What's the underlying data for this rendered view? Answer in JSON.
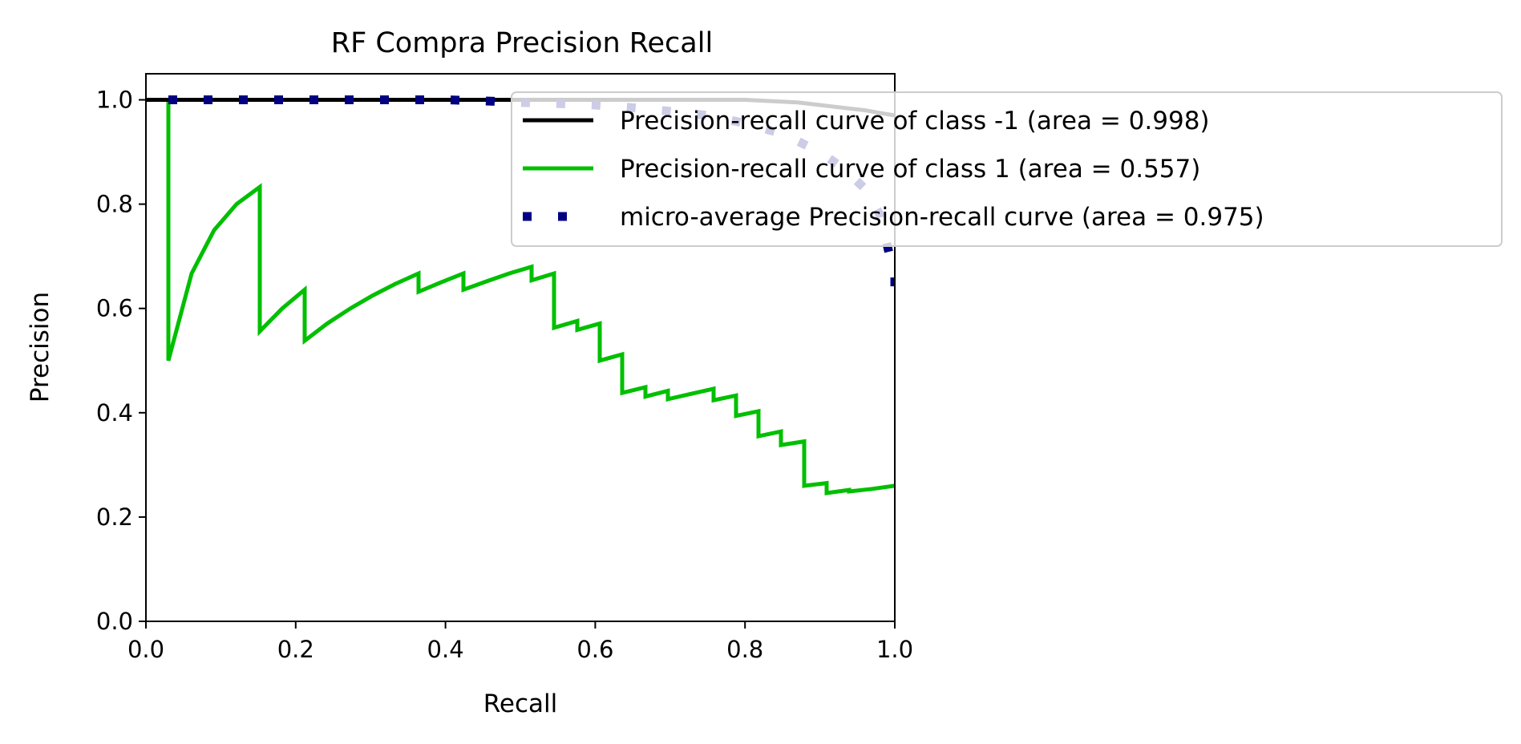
{
  "chart_data": {
    "type": "line",
    "title": "RF Compra Precision Recall",
    "xlabel": "Recall",
    "ylabel": "Precision",
    "xlim": [
      0.0,
      1.0
    ],
    "ylim": [
      0.0,
      1.05
    ],
    "xticks": [
      "0.0",
      "0.2",
      "0.4",
      "0.6",
      "0.8",
      "1.0"
    ],
    "yticks": [
      "0.0",
      "0.2",
      "0.4",
      "0.6",
      "0.8",
      "1.0"
    ],
    "grid": false,
    "legend_position": "upper-right, overflowing right of axes",
    "series": [
      {
        "name": "Precision-recall curve of class -1 (area = 0.998)",
        "color": "#000000",
        "style": "solid",
        "x": [
          0.0,
          0.5,
          0.6,
          0.7,
          0.8,
          0.87,
          0.9,
          0.93,
          0.96,
          0.98,
          1.0
        ],
        "y": [
          1.0,
          1.0,
          1.0,
          1.0,
          1.0,
          0.995,
          0.99,
          0.985,
          0.98,
          0.975,
          0.97
        ]
      },
      {
        "name": "Precision-recall curve of class 1 (area = 0.557)",
        "color": "#00bf00",
        "style": "solid",
        "x": [
          0.0,
          0.03,
          0.03,
          0.061,
          0.091,
          0.121,
          0.152,
          0.152,
          0.182,
          0.212,
          0.212,
          0.242,
          0.273,
          0.303,
          0.333,
          0.364,
          0.364,
          0.394,
          0.424,
          0.424,
          0.455,
          0.485,
          0.515,
          0.515,
          0.545,
          0.545,
          0.576,
          0.576,
          0.606,
          0.606,
          0.636,
          0.636,
          0.667,
          0.667,
          0.697,
          0.697,
          0.727,
          0.758,
          0.758,
          0.788,
          0.788,
          0.818,
          0.818,
          0.848,
          0.848,
          0.879,
          0.879,
          0.909,
          0.909,
          0.939,
          0.939,
          0.97,
          1.0
        ],
        "y": [
          1.0,
          1.0,
          0.5,
          0.667,
          0.75,
          0.8,
          0.833,
          0.556,
          0.6,
          0.636,
          0.538,
          0.571,
          0.6,
          0.625,
          0.647,
          0.667,
          0.632,
          0.65,
          0.667,
          0.636,
          0.652,
          0.667,
          0.68,
          0.654,
          0.667,
          0.563,
          0.576,
          0.559,
          0.571,
          0.5,
          0.512,
          0.438,
          0.449,
          0.431,
          0.442,
          0.426,
          0.436,
          0.446,
          0.424,
          0.433,
          0.394,
          0.403,
          0.355,
          0.364,
          0.338,
          0.345,
          0.26,
          0.265,
          0.246,
          0.252,
          0.249,
          0.254,
          0.26
        ]
      },
      {
        "name": "micro-average Precision-recall curve (area = 0.975)",
        "color": "#000080",
        "style": "dotted",
        "x": [
          0.03,
          0.1,
          0.2,
          0.3,
          0.4,
          0.45,
          0.5,
          0.55,
          0.6,
          0.65,
          0.7,
          0.75,
          0.8,
          0.85,
          0.9,
          0.93,
          0.96,
          0.98,
          0.99,
          0.995,
          1.0,
          1.0
        ],
        "y": [
          1.0,
          1.0,
          1.0,
          1.0,
          1.0,
          0.998,
          0.995,
          0.993,
          0.99,
          0.985,
          0.978,
          0.97,
          0.955,
          0.935,
          0.9,
          0.87,
          0.83,
          0.78,
          0.72,
          0.69,
          0.66,
          0.64
        ]
      }
    ]
  }
}
